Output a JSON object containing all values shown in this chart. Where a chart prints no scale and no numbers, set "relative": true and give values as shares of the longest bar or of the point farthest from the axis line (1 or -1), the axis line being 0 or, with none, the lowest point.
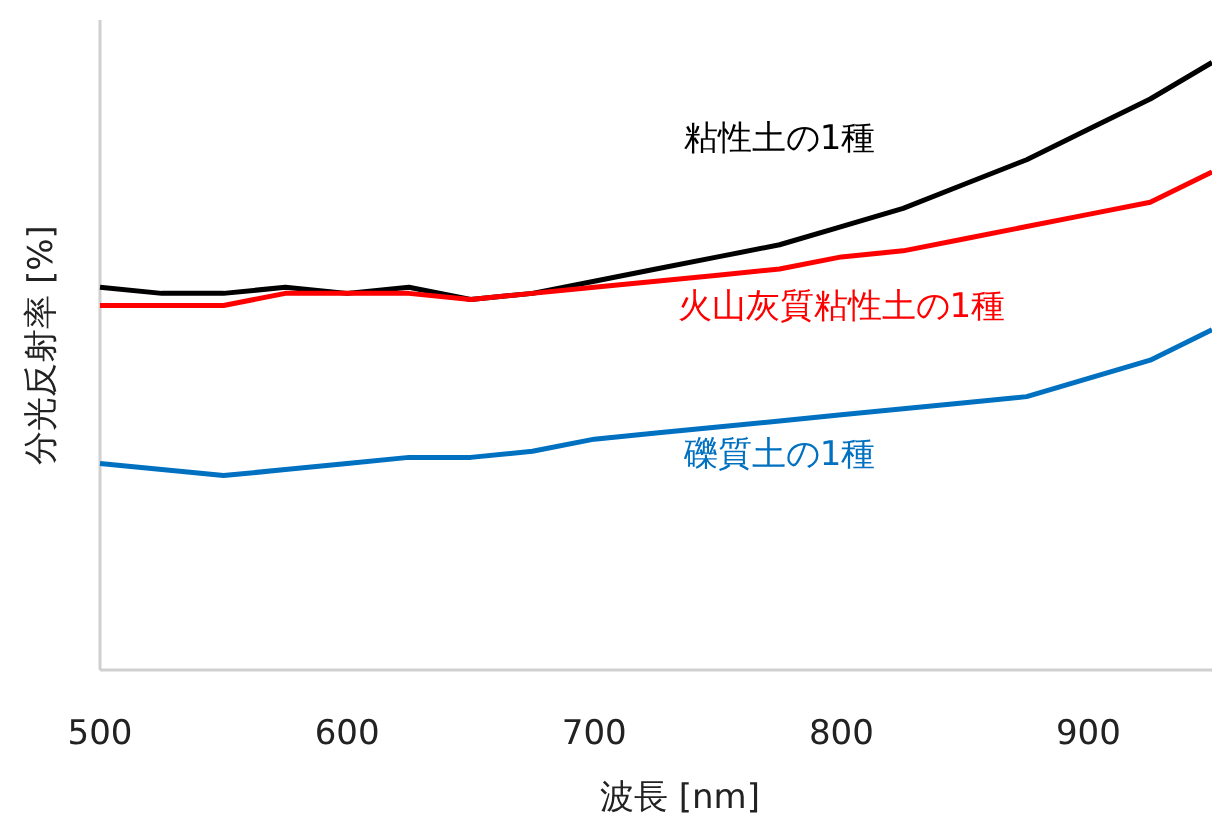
{
  "chart_data": {
    "type": "line",
    "xlabel": "波長 [nm]",
    "ylabel": "分光反射率 [%]",
    "relative": true,
    "x": [
      500,
      525,
      550,
      575,
      600,
      625,
      650,
      675,
      700,
      725,
      750,
      775,
      800,
      825,
      850,
      875,
      900,
      925,
      950
    ],
    "xlim": [
      500,
      950
    ],
    "xticks": [
      500,
      600,
      700,
      800,
      900
    ],
    "grid": false,
    "marker": "none",
    "line_style": "solid",
    "series": [
      {
        "name": "粘性土の1種",
        "color": "#000000",
        "values": [
          0.63,
          0.62,
          0.62,
          0.63,
          0.62,
          0.63,
          0.61,
          0.62,
          0.64,
          0.66,
          0.68,
          0.7,
          0.73,
          0.76,
          0.8,
          0.84,
          0.89,
          0.94,
          1.0
        ]
      },
      {
        "name": "火山灰質粘性土の1種",
        "color": "#ff0000",
        "values": [
          0.6,
          0.6,
          0.6,
          0.62,
          0.62,
          0.62,
          0.61,
          0.62,
          0.63,
          0.64,
          0.65,
          0.66,
          0.68,
          0.69,
          0.71,
          0.73,
          0.75,
          0.77,
          0.82
        ]
      },
      {
        "name": "礫質土の1種",
        "color": "#0070c0",
        "values": [
          0.34,
          0.33,
          0.32,
          0.33,
          0.34,
          0.35,
          0.35,
          0.36,
          0.38,
          0.39,
          0.4,
          0.41,
          0.42,
          0.43,
          0.44,
          0.45,
          0.48,
          0.51,
          0.56
        ]
      }
    ]
  }
}
